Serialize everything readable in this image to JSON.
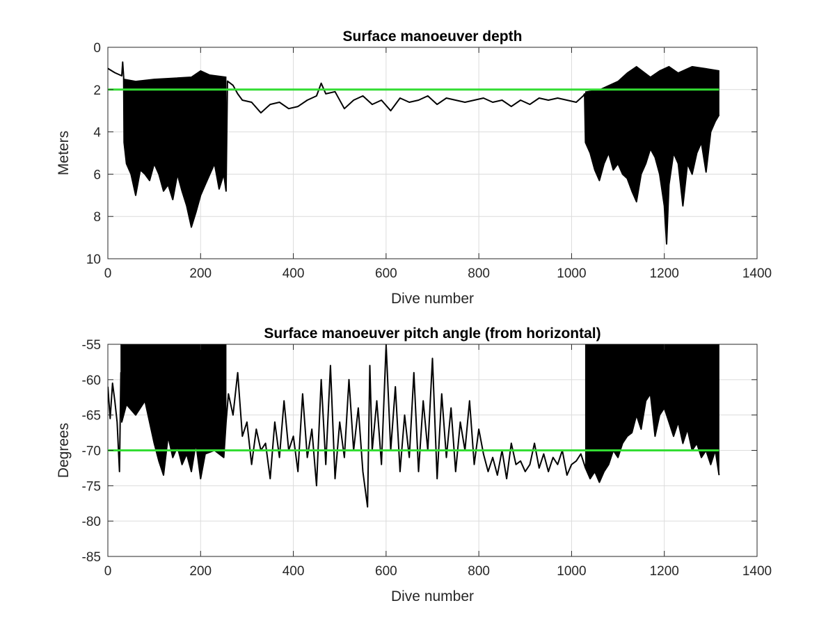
{
  "chart_data": [
    {
      "type": "line",
      "title": "Surface manoeuver depth",
      "xlabel": "Dive number",
      "ylabel": "Meters",
      "xlim": [
        0,
        1400
      ],
      "ylim": [
        0,
        10
      ],
      "y_reversed": true,
      "grid": true,
      "xticks": [
        "0",
        "200",
        "400",
        "600",
        "800",
        "1000",
        "1200",
        "1400"
      ],
      "yticks": [
        "0",
        "2",
        "4",
        "6",
        "8",
        "10"
      ],
      "reference_line": {
        "y": 2,
        "color": "#33dd33"
      },
      "series_color": "#000000",
      "series": [
        {
          "points": [
            [
              0,
              1.0
            ],
            [
              15,
              1.2
            ],
            [
              30,
              1.35
            ],
            [
              32,
              0.7
            ],
            [
              34,
              1.4
            ],
            [
              35,
              4.5
            ],
            [
              40,
              5.5
            ],
            [
              50,
              6.0
            ],
            [
              60,
              7.0
            ],
            [
              70,
              5.8
            ],
            [
              80,
              6.0
            ],
            [
              90,
              6.3
            ],
            [
              100,
              5.5
            ],
            [
              110,
              6.0
            ],
            [
              120,
              6.8
            ],
            [
              130,
              6.5
            ],
            [
              140,
              7.2
            ],
            [
              150,
              6.0
            ],
            [
              160,
              6.8
            ],
            [
              170,
              7.5
            ],
            [
              180,
              8.5
            ],
            [
              190,
              7.8
            ],
            [
              200,
              7.0
            ],
            [
              210,
              6.5
            ],
            [
              220,
              6.0
            ],
            [
              230,
              5.5
            ],
            [
              240,
              6.7
            ],
            [
              250,
              6.0
            ],
            [
              255,
              6.8
            ],
            [
              258,
              1.6
            ],
            [
              270,
              1.8
            ],
            [
              280,
              2.2
            ],
            [
              290,
              2.5
            ],
            [
              310,
              2.6
            ],
            [
              330,
              3.1
            ],
            [
              350,
              2.7
            ],
            [
              370,
              2.6
            ],
            [
              390,
              2.9
            ],
            [
              410,
              2.8
            ],
            [
              430,
              2.5
            ],
            [
              450,
              2.3
            ],
            [
              460,
              1.7
            ],
            [
              470,
              2.2
            ],
            [
              490,
              2.1
            ],
            [
              510,
              2.9
            ],
            [
              530,
              2.5
            ],
            [
              550,
              2.3
            ],
            [
              570,
              2.7
            ],
            [
              590,
              2.5
            ],
            [
              610,
              3.0
            ],
            [
              630,
              2.4
            ],
            [
              650,
              2.6
            ],
            [
              670,
              2.5
            ],
            [
              690,
              2.3
            ],
            [
              710,
              2.7
            ],
            [
              730,
              2.4
            ],
            [
              750,
              2.5
            ],
            [
              770,
              2.6
            ],
            [
              790,
              2.5
            ],
            [
              810,
              2.4
            ],
            [
              830,
              2.6
            ],
            [
              850,
              2.5
            ],
            [
              870,
              2.8
            ],
            [
              890,
              2.5
            ],
            [
              910,
              2.7
            ],
            [
              930,
              2.4
            ],
            [
              950,
              2.5
            ],
            [
              970,
              2.4
            ],
            [
              990,
              2.5
            ],
            [
              1010,
              2.6
            ],
            [
              1025,
              2.3
            ],
            [
              1028,
              2.2
            ],
            [
              1030,
              4.5
            ],
            [
              1040,
              5.0
            ],
            [
              1050,
              5.8
            ],
            [
              1060,
              6.3
            ],
            [
              1070,
              5.5
            ],
            [
              1080,
              5.0
            ],
            [
              1090,
              5.8
            ],
            [
              1100,
              5.5
            ],
            [
              1110,
              6.0
            ],
            [
              1120,
              6.2
            ],
            [
              1130,
              6.8
            ],
            [
              1140,
              7.3
            ],
            [
              1150,
              6.0
            ],
            [
              1160,
              5.5
            ],
            [
              1170,
              4.8
            ],
            [
              1180,
              5.2
            ],
            [
              1190,
              6.0
            ],
            [
              1200,
              7.5
            ],
            [
              1205,
              9.3
            ],
            [
              1210,
              6.5
            ],
            [
              1220,
              5.0
            ],
            [
              1230,
              5.5
            ],
            [
              1240,
              7.5
            ],
            [
              1250,
              5.5
            ],
            [
              1260,
              6.0
            ],
            [
              1270,
              5.0
            ],
            [
              1280,
              4.5
            ],
            [
              1290,
              5.9
            ],
            [
              1300,
              4.0
            ],
            [
              1310,
              3.5
            ],
            [
              1318,
              3.2
            ]
          ],
          "upper_points": [
            [
              35,
              1.5
            ],
            [
              60,
              1.6
            ],
            [
              100,
              1.5
            ],
            [
              140,
              1.45
            ],
            [
              180,
              1.4
            ],
            [
              200,
              1.1
            ],
            [
              220,
              1.3
            ],
            [
              255,
              1.4
            ],
            [
              1030,
              2.1
            ],
            [
              1060,
              2.0
            ],
            [
              1100,
              1.6
            ],
            [
              1120,
              1.2
            ],
            [
              1140,
              0.9
            ],
            [
              1170,
              1.4
            ],
            [
              1190,
              1.1
            ],
            [
              1210,
              0.9
            ],
            [
              1230,
              1.2
            ],
            [
              1260,
              0.9
            ],
            [
              1290,
              1.0
            ],
            [
              1318,
              1.1
            ]
          ]
        }
      ]
    },
    {
      "type": "line",
      "title": "Surface manoeuver pitch angle (from horizontal)",
      "xlabel": "Dive number",
      "ylabel": "Degrees",
      "xlim": [
        0,
        1400
      ],
      "ylim": [
        -85,
        -55
      ],
      "grid": true,
      "xticks": [
        "0",
        "200",
        "400",
        "600",
        "800",
        "1000",
        "1200",
        "1400"
      ],
      "yticks": [
        "-55",
        "-60",
        "-65",
        "-70",
        "-75",
        "-80",
        "-85"
      ],
      "reference_line": {
        "y": -70,
        "color": "#33dd33"
      },
      "series_color": "#000000",
      "series": [
        {
          "points": [
            [
              0,
              -61.0
            ],
            [
              5,
              -65.5
            ],
            [
              10,
              -60.5
            ],
            [
              15,
              -63.0
            ],
            [
              20,
              -66.0
            ],
            [
              25,
              -73.0
            ],
            [
              28,
              -59.0
            ],
            [
              30,
              -66.0
            ],
            [
              40,
              -63.5
            ],
            [
              60,
              -65.0
            ],
            [
              80,
              -63.0
            ],
            [
              100,
              -69.0
            ],
            [
              110,
              -71.5
            ],
            [
              120,
              -73.5
            ],
            [
              130,
              -68.0
            ],
            [
              140,
              -71.0
            ],
            [
              150,
              -69.5
            ],
            [
              160,
              -72.0
            ],
            [
              170,
              -70.5
            ],
            [
              180,
              -73.0
            ],
            [
              190,
              -69.0
            ],
            [
              200,
              -74.0
            ],
            [
              210,
              -70.5
            ],
            [
              230,
              -70.0
            ],
            [
              250,
              -71.0
            ],
            [
              255,
              -66.0
            ],
            [
              260,
              -62.0
            ],
            [
              270,
              -65.0
            ],
            [
              280,
              -59.0
            ],
            [
              290,
              -68.0
            ],
            [
              300,
              -66.0
            ],
            [
              310,
              -72.0
            ],
            [
              320,
              -67.0
            ],
            [
              330,
              -70.0
            ],
            [
              340,
              -69.0
            ],
            [
              350,
              -74.0
            ],
            [
              360,
              -66.0
            ],
            [
              370,
              -71.0
            ],
            [
              380,
              -63.0
            ],
            [
              390,
              -70.0
            ],
            [
              400,
              -68.0
            ],
            [
              410,
              -73.0
            ],
            [
              420,
              -62.0
            ],
            [
              430,
              -71.0
            ],
            [
              440,
              -67.0
            ],
            [
              450,
              -75.0
            ],
            [
              460,
              -60.0
            ],
            [
              470,
              -72.0
            ],
            [
              480,
              -58.0
            ],
            [
              490,
              -74.0
            ],
            [
              500,
              -66.0
            ],
            [
              510,
              -71.0
            ],
            [
              520,
              -60.0
            ],
            [
              530,
              -70.0
            ],
            [
              540,
              -64.0
            ],
            [
              550,
              -73.0
            ],
            [
              560,
              -78.0
            ],
            [
              565,
              -58.0
            ],
            [
              570,
              -70.0
            ],
            [
              580,
              -63.0
            ],
            [
              590,
              -72.0
            ],
            [
              600,
              -55.0
            ],
            [
              610,
              -70.0
            ],
            [
              620,
              -61.0
            ],
            [
              630,
              -73.0
            ],
            [
              640,
              -65.0
            ],
            [
              650,
              -71.0
            ],
            [
              660,
              -59.0
            ],
            [
              670,
              -73.0
            ],
            [
              680,
              -63.0
            ],
            [
              690,
              -70.0
            ],
            [
              700,
              -57.0
            ],
            [
              710,
              -74.0
            ],
            [
              720,
              -62.0
            ],
            [
              730,
              -71.0
            ],
            [
              740,
              -64.0
            ],
            [
              750,
              -73.0
            ],
            [
              760,
              -66.0
            ],
            [
              770,
              -70.0
            ],
            [
              780,
              -63.0
            ],
            [
              790,
              -72.0
            ],
            [
              800,
              -67.0
            ],
            [
              810,
              -70.5
            ],
            [
              820,
              -73.0
            ],
            [
              830,
              -71.0
            ],
            [
              840,
              -73.5
            ],
            [
              850,
              -70.0
            ],
            [
              860,
              -74.0
            ],
            [
              870,
              -69.0
            ],
            [
              880,
              -72.0
            ],
            [
              890,
              -71.5
            ],
            [
              900,
              -73.0
            ],
            [
              910,
              -72.0
            ],
            [
              920,
              -69.0
            ],
            [
              930,
              -72.5
            ],
            [
              940,
              -70.5
            ],
            [
              950,
              -73.0
            ],
            [
              960,
              -71.0
            ],
            [
              970,
              -72.0
            ],
            [
              980,
              -70.0
            ],
            [
              990,
              -73.5
            ],
            [
              1000,
              -72.0
            ],
            [
              1010,
              -71.5
            ],
            [
              1020,
              -70.5
            ],
            [
              1030,
              -72.5
            ],
            [
              1040,
              -74.0
            ],
            [
              1050,
              -73.0
            ],
            [
              1060,
              -74.5
            ],
            [
              1070,
              -73.0
            ],
            [
              1080,
              -72.0
            ],
            [
              1090,
              -70.0
            ],
            [
              1100,
              -71.0
            ],
            [
              1110,
              -69.0
            ],
            [
              1120,
              -68.0
            ],
            [
              1130,
              -67.5
            ],
            [
              1140,
              -65.0
            ],
            [
              1150,
              -67.0
            ],
            [
              1160,
              -63.0
            ],
            [
              1170,
              -62.0
            ],
            [
              1180,
              -68.0
            ],
            [
              1190,
              -65.0
            ],
            [
              1200,
              -64.0
            ],
            [
              1210,
              -66.0
            ],
            [
              1220,
              -68.0
            ],
            [
              1230,
              -66.0
            ],
            [
              1240,
              -69.0
            ],
            [
              1250,
              -67.0
            ],
            [
              1260,
              -70.0
            ],
            [
              1270,
              -69.0
            ],
            [
              1280,
              -71.0
            ],
            [
              1290,
              -70.0
            ],
            [
              1300,
              -72.0
            ],
            [
              1310,
              -70.0
            ],
            [
              1318,
              -73.5
            ]
          ],
          "upper_points": [
            [
              28,
              -55.0
            ],
            [
              40,
              -55.0
            ],
            [
              100,
              -55.0
            ],
            [
              160,
              -55.0
            ],
            [
              220,
              -55.0
            ],
            [
              255,
              -55.0
            ],
            [
              1030,
              -55.0
            ],
            [
              1100,
              -55.0
            ],
            [
              1160,
              -55.0
            ],
            [
              1200,
              -55.0
            ],
            [
              1260,
              -55.0
            ],
            [
              1318,
              -55.0
            ]
          ],
          "dense_bands": [
            [
              28,
              255
            ],
            [
              1030,
              1318
            ]
          ]
        }
      ]
    }
  ]
}
